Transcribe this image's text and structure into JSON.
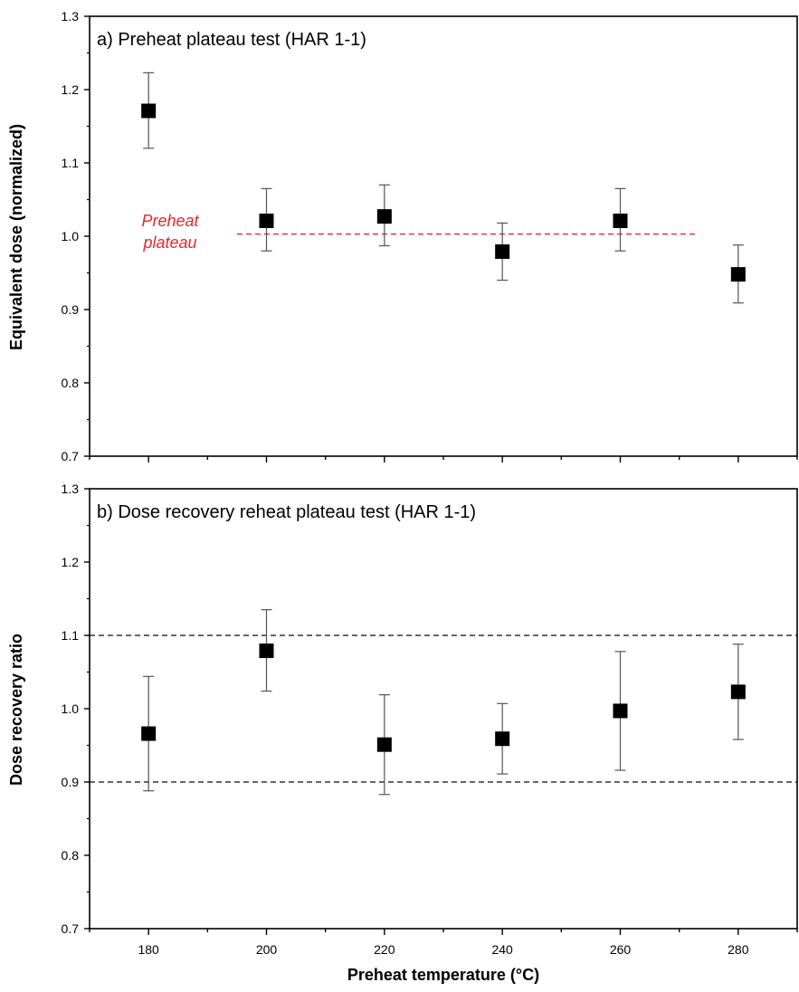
{
  "chart_data": [
    {
      "type": "scatter",
      "panel_label": "a) Preheat plateau test (HAR 1-1)",
      "xlabel": "Preheat temperature (°C)",
      "ylabel": "Equivalent dose (normalized)",
      "xlim": [
        170,
        290
      ],
      "ylim": [
        0.7,
        1.3
      ],
      "x_ticks": [
        "180",
        "200",
        "220",
        "240",
        "260",
        "280"
      ],
      "y_ticks": [
        "0.7",
        "0.8",
        "0.9",
        "1.0",
        "1.1",
        "1.2",
        "1.3"
      ],
      "series": [
        {
          "x": [
            180,
            200,
            220,
            240,
            260,
            280
          ],
          "y": [
            1.171,
            1.021,
            1.027,
            0.979,
            1.021,
            0.948
          ],
          "err_low": [
            1.12,
            0.98,
            0.987,
            0.94,
            0.98,
            0.909
          ],
          "err_high": [
            1.223,
            1.065,
            1.07,
            1.018,
            1.065,
            0.988
          ]
        }
      ],
      "reference_line": {
        "y": 1.003,
        "x_range": [
          195,
          273
        ],
        "color": "#e8262c"
      },
      "annotation": {
        "lines": [
          "Preheat",
          "plateau"
        ],
        "color": "#e8262c"
      },
      "grid": false,
      "x_tick_labels_visible": false
    },
    {
      "type": "scatter",
      "panel_label": "b) Dose recovery reheat plateau test (HAR 1-1)",
      "xlabel": "Preheat temperature (°C)",
      "ylabel": "Dose recovery ratio",
      "xlim": [
        170,
        290
      ],
      "ylim": [
        0.7,
        1.3
      ],
      "x_ticks": [
        "180",
        "200",
        "220",
        "240",
        "260",
        "280"
      ],
      "y_ticks": [
        "0.7",
        "0.8",
        "0.9",
        "1.0",
        "1.1",
        "1.2",
        "1.3"
      ],
      "series": [
        {
          "x": [
            180,
            200,
            220,
            240,
            260,
            280
          ],
          "y": [
            0.966,
            1.079,
            0.951,
            0.959,
            0.997,
            1.023
          ],
          "err_low": [
            0.888,
            1.024,
            0.883,
            0.911,
            0.916,
            0.958
          ],
          "err_high": [
            1.044,
            1.135,
            1.019,
            1.007,
            1.078,
            1.088
          ]
        }
      ],
      "reference_lines": [
        1.1,
        0.9
      ],
      "grid": false,
      "x_tick_labels_visible": true
    }
  ],
  "colors": {
    "marker": "#000000",
    "error_bar": "#555555",
    "reference_dashed": "#333333",
    "plateau_line": "#e8262c"
  }
}
